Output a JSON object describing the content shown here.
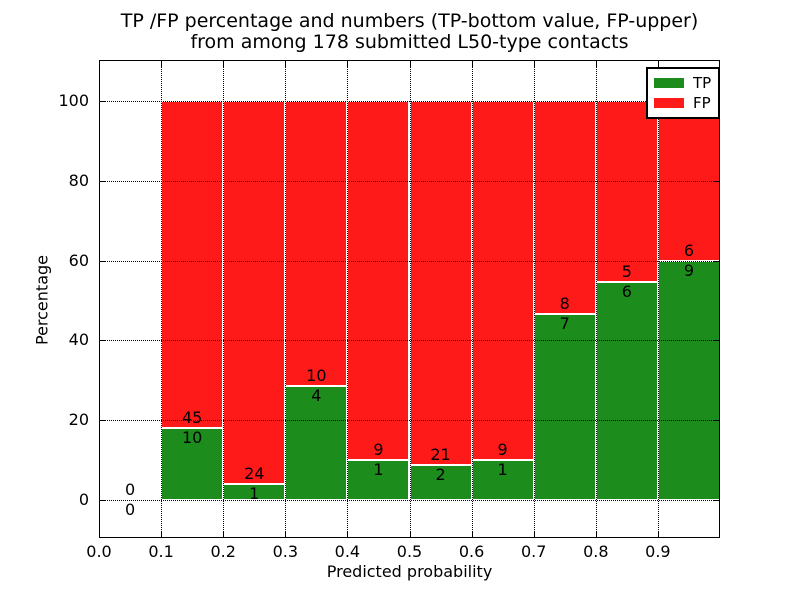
{
  "figure": {
    "title_line1": "TP /FP percentage and numbers (TP-bottom value, FP-upper)",
    "title_line2": "from among 178 submitted L50-type contacts"
  },
  "axes": {
    "xlabel": "Predicted probability",
    "ylabel": "Percentage",
    "xticks": [
      "0.0",
      "0.1",
      "0.2",
      "0.3",
      "0.4",
      "0.5",
      "0.6",
      "0.7",
      "0.8",
      "0.9"
    ],
    "xtick_values": [
      0.0,
      0.1,
      0.2,
      0.3,
      0.4,
      0.5,
      0.6,
      0.7,
      0.8,
      0.9
    ],
    "yticks": [
      "0",
      "20",
      "40",
      "60",
      "80",
      "100"
    ],
    "ytick_values": [
      0,
      20,
      40,
      60,
      80,
      100
    ]
  },
  "legend": {
    "items": [
      {
        "label": "TP",
        "color": "#1c8c1c"
      },
      {
        "label": "FP",
        "color": "#ff1a1a"
      }
    ]
  },
  "colors": {
    "tp_green": "#1c8c1c",
    "fp_red": "#ff1a1a",
    "bar_edge": "#ffffff",
    "grid": "#000000",
    "text": "#000000",
    "background": "#ffffff"
  },
  "chart_data": {
    "type": "bar",
    "stacked": true,
    "normalized_to_percent": 100,
    "title": "TP /FP percentage and numbers (TP-bottom value, FP-upper) from among 178 submitted L50-type contacts",
    "xlabel": "Predicted probability",
    "ylabel": "Percentage",
    "xlim": [
      0.0,
      1.0
    ],
    "ylim": [
      -9.5,
      110.3
    ],
    "grid": "dotted, drawn above bars",
    "legend_position": "upper right",
    "total_contacts": 178,
    "bin_width": 0.1,
    "series_names": [
      "TP",
      "FP"
    ],
    "bins": [
      {
        "x_start": 0.0,
        "x_end": 0.1,
        "tp": 0,
        "fp": 0,
        "tp_pct": null,
        "fp_pct": null
      },
      {
        "x_start": 0.1,
        "x_end": 0.2,
        "tp": 10,
        "fp": 45,
        "tp_pct": 18.2,
        "fp_pct": 81.8
      },
      {
        "x_start": 0.2,
        "x_end": 0.3,
        "tp": 1,
        "fp": 24,
        "tp_pct": 4.0,
        "fp_pct": 96.0
      },
      {
        "x_start": 0.3,
        "x_end": 0.4,
        "tp": 4,
        "fp": 10,
        "tp_pct": 28.6,
        "fp_pct": 71.4
      },
      {
        "x_start": 0.4,
        "x_end": 0.5,
        "tp": 1,
        "fp": 9,
        "tp_pct": 10.0,
        "fp_pct": 90.0
      },
      {
        "x_start": 0.5,
        "x_end": 0.6,
        "tp": 2,
        "fp": 21,
        "tp_pct": 8.7,
        "fp_pct": 91.3
      },
      {
        "x_start": 0.6,
        "x_end": 0.7,
        "tp": 1,
        "fp": 9,
        "tp_pct": 10.0,
        "fp_pct": 90.0
      },
      {
        "x_start": 0.7,
        "x_end": 0.8,
        "tp": 7,
        "fp": 8,
        "tp_pct": 46.7,
        "fp_pct": 53.3
      },
      {
        "x_start": 0.8,
        "x_end": 0.9,
        "tp": 6,
        "fp": 5,
        "tp_pct": 54.5,
        "fp_pct": 45.5
      },
      {
        "x_start": 0.9,
        "x_end": 1.0,
        "tp": 9,
        "fp": 6,
        "tp_pct": 60.0,
        "fp_pct": 40.0
      }
    ]
  }
}
